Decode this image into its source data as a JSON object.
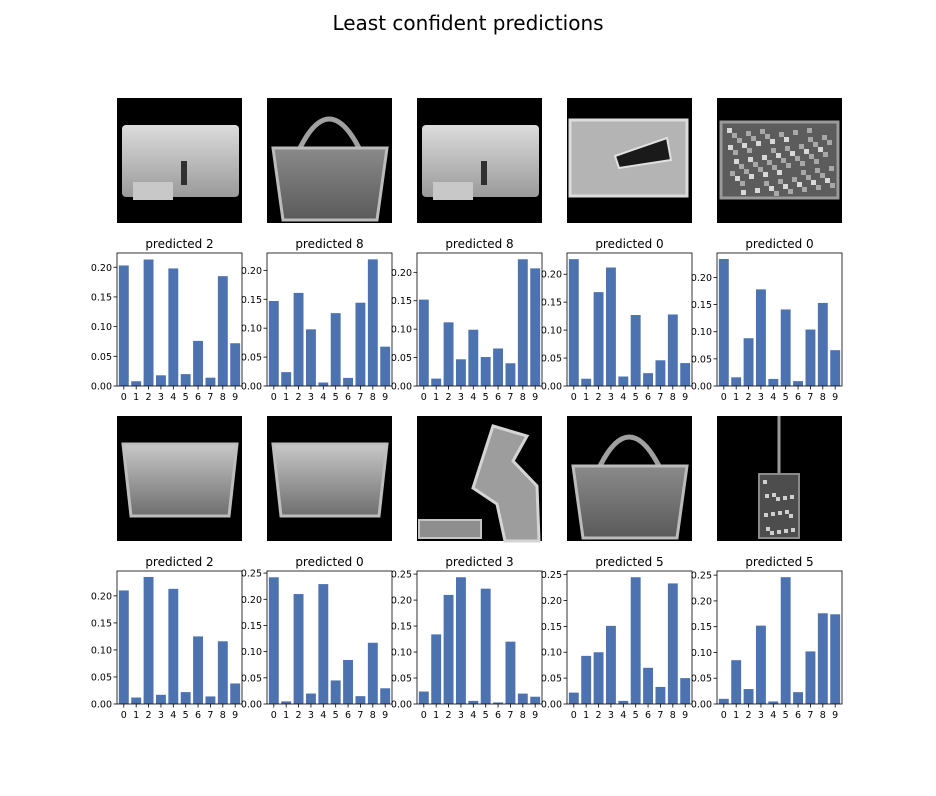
{
  "figure": {
    "title": "Least confident predictions"
  },
  "chart_data": [
    {
      "type": "bar",
      "title": "predicted 2",
      "image": "handbag",
      "categories": [
        "0",
        "1",
        "2",
        "3",
        "4",
        "5",
        "6",
        "7",
        "8",
        "9"
      ],
      "values": [
        0.203,
        0.008,
        0.213,
        0.018,
        0.198,
        0.02,
        0.076,
        0.014,
        0.185,
        0.072
      ],
      "yticks": [
        0.0,
        0.05,
        0.1,
        0.15,
        0.2
      ],
      "ylim": [
        0,
        0.224
      ]
    },
    {
      "type": "bar",
      "title": "predicted 8",
      "image": "bag-with-handle",
      "categories": [
        "0",
        "1",
        "2",
        "3",
        "4",
        "5",
        "6",
        "7",
        "8",
        "9"
      ],
      "values": [
        0.147,
        0.024,
        0.161,
        0.098,
        0.006,
        0.126,
        0.014,
        0.144,
        0.219,
        0.068
      ],
      "yticks": [
        0.0,
        0.05,
        0.1,
        0.15,
        0.2
      ],
      "ylim": [
        0,
        0.23
      ]
    },
    {
      "type": "bar",
      "title": "predicted 8",
      "image": "handbag",
      "categories": [
        "0",
        "1",
        "2",
        "3",
        "4",
        "5",
        "6",
        "7",
        "8",
        "9"
      ],
      "values": [
        0.152,
        0.013,
        0.112,
        0.047,
        0.099,
        0.051,
        0.066,
        0.04,
        0.223,
        0.207
      ],
      "yticks": [
        0.0,
        0.05,
        0.1,
        0.15,
        0.2
      ],
      "ylim": [
        0,
        0.234
      ]
    },
    {
      "type": "bar",
      "title": "predicted 0",
      "image": "clutch",
      "categories": [
        "0",
        "1",
        "2",
        "3",
        "4",
        "5",
        "6",
        "7",
        "8",
        "9"
      ],
      "values": [
        0.227,
        0.013,
        0.168,
        0.212,
        0.017,
        0.127,
        0.023,
        0.046,
        0.128,
        0.041
      ],
      "yticks": [
        0.0,
        0.05,
        0.1,
        0.15,
        0.2
      ],
      "ylim": [
        0,
        0.238
      ]
    },
    {
      "type": "bar",
      "title": "predicted 0",
      "image": "textured-bag",
      "categories": [
        "0",
        "1",
        "2",
        "3",
        "4",
        "5",
        "6",
        "7",
        "8",
        "9"
      ],
      "values": [
        0.234,
        0.016,
        0.088,
        0.178,
        0.013,
        0.141,
        0.009,
        0.104,
        0.153,
        0.066
      ],
      "yticks": [
        0.0,
        0.05,
        0.1,
        0.15,
        0.2
      ],
      "ylim": [
        0,
        0.245
      ]
    },
    {
      "type": "bar",
      "title": "predicted 2",
      "image": "bag",
      "categories": [
        "0",
        "1",
        "2",
        "3",
        "4",
        "5",
        "6",
        "7",
        "8",
        "9"
      ],
      "values": [
        0.21,
        0.012,
        0.235,
        0.017,
        0.213,
        0.022,
        0.125,
        0.014,
        0.116,
        0.038
      ],
      "yticks": [
        0.0,
        0.05,
        0.1,
        0.15,
        0.2
      ],
      "ylim": [
        0,
        0.246
      ]
    },
    {
      "type": "bar",
      "title": "predicted 0",
      "image": "bag",
      "categories": [
        "0",
        "1",
        "2",
        "3",
        "4",
        "5",
        "6",
        "7",
        "8",
        "9"
      ],
      "values": [
        0.242,
        0.005,
        0.21,
        0.02,
        0.229,
        0.045,
        0.084,
        0.015,
        0.117,
        0.03
      ],
      "yticks": [
        0.0,
        0.05,
        0.1,
        0.15,
        0.2,
        0.25
      ],
      "ylim": [
        0,
        0.254
      ]
    },
    {
      "type": "bar",
      "title": "predicted 3",
      "image": "sandal",
      "categories": [
        "0",
        "1",
        "2",
        "3",
        "4",
        "5",
        "6",
        "7",
        "8",
        "9"
      ],
      "values": [
        0.024,
        0.134,
        0.21,
        0.244,
        0.006,
        0.222,
        0.003,
        0.12,
        0.02,
        0.014
      ],
      "yticks": [
        0.0,
        0.05,
        0.1,
        0.15,
        0.2,
        0.25
      ],
      "ylim": [
        0,
        0.256
      ]
    },
    {
      "type": "bar",
      "title": "predicted 5",
      "image": "bag-with-handle",
      "categories": [
        "0",
        "1",
        "2",
        "3",
        "4",
        "5",
        "6",
        "7",
        "8",
        "9"
      ],
      "values": [
        0.022,
        0.093,
        0.1,
        0.151,
        0.006,
        0.245,
        0.07,
        0.033,
        0.233,
        0.05
      ],
      "yticks": [
        0.0,
        0.05,
        0.1,
        0.15,
        0.2,
        0.25
      ],
      "ylim": [
        0,
        0.257
      ]
    },
    {
      "type": "bar",
      "title": "predicted 5",
      "image": "narrow-bag",
      "categories": [
        "0",
        "1",
        "2",
        "3",
        "4",
        "5",
        "6",
        "7",
        "8",
        "9"
      ],
      "values": [
        0.01,
        0.085,
        0.029,
        0.152,
        0.005,
        0.246,
        0.023,
        0.102,
        0.176,
        0.174
      ],
      "yticks": [
        0.0,
        0.05,
        0.1,
        0.15,
        0.2,
        0.25
      ],
      "ylim": [
        0,
        0.258
      ]
    }
  ],
  "colors": {
    "bar": "#4c72b0",
    "image_bg": "#000000"
  }
}
